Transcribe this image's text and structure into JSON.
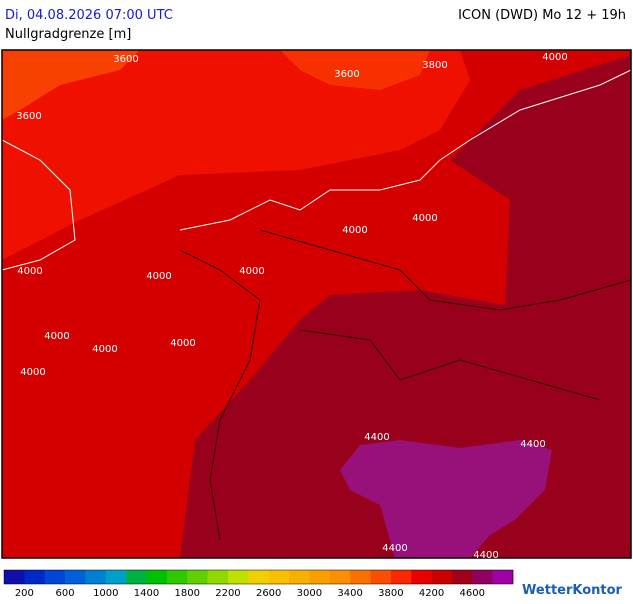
{
  "header": {
    "datetime": "Di, 04.08.2026 07:00 UTC",
    "model": "ICON (DWD) Mo 12 + 19h",
    "subtitle": "Nullgradgrenze [m]"
  },
  "contour_labels": [
    "3600",
    "3600",
    "3800",
    "4000",
    "3600",
    "4000",
    "4000",
    "4000",
    "4000",
    "4000",
    "4000",
    "4000",
    "4000",
    "4000",
    "4400",
    "4400",
    "4400",
    "4400"
  ],
  "colorbar": {
    "colors": [
      "#1010a8",
      "#0028c8",
      "#0044d8",
      "#0060d8",
      "#0080d0",
      "#00a0c8",
      "#00b040",
      "#00c000",
      "#30c800",
      "#60d000",
      "#90d800",
      "#c0e000",
      "#f0d000",
      "#f8c000",
      "#f8b000",
      "#f8a000",
      "#f89000",
      "#f87000",
      "#f85000",
      "#f82800",
      "#e80000",
      "#c80000",
      "#a00018",
      "#900060",
      "#a000a8"
    ],
    "labels": [
      "200",
      "600",
      "1000",
      "1400",
      "1800",
      "2200",
      "2600",
      "3000",
      "3400",
      "3800",
      "4200",
      "4600"
    ]
  },
  "logo": "WetterKontor"
}
